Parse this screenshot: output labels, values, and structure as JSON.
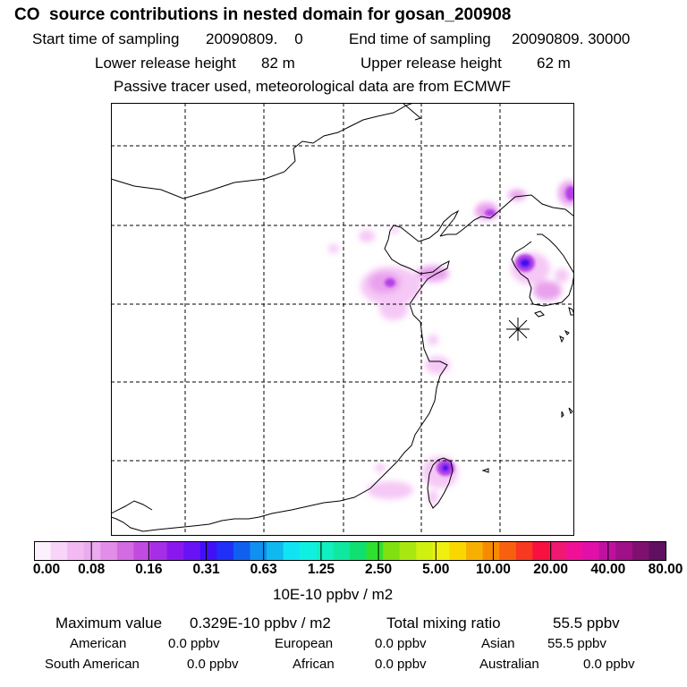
{
  "header": {
    "title": "CO  source contributions in nested domain for gosan_200908",
    "start_label": "Start time of sampling",
    "start_value": "20090809.    0",
    "end_label": "End time of sampling",
    "end_value": "20090809. 30000",
    "lower_label": "Lower release height",
    "lower_value": "82 m",
    "upper_label": "Upper release height",
    "upper_value": "62 m",
    "passive_note": "Passive tracer used, meteorological data are from ECMWF"
  },
  "colors": {
    "scale": [
      "#fdf0fd",
      "#f8d5f8",
      "#f3b9f3",
      "#ecaaef",
      "#e28ee8",
      "#d36be2",
      "#c14ae0",
      "#a52ee6",
      "#8a18ee",
      "#6a12f6",
      "#4010f8",
      "#2030f8",
      "#1060f0",
      "#1090f0",
      "#10b8f0",
      "#10e4f4",
      "#10f0e0",
      "#10f0c0",
      "#10e8a0",
      "#10e070",
      "#30e030",
      "#80e010",
      "#a8e810",
      "#d0f010",
      "#f0f010",
      "#f8d800",
      "#f8b000",
      "#f88a00",
      "#f86010",
      "#f83820",
      "#f81040",
      "#f01870",
      "#f01098",
      "#e010a8",
      "#c010a0",
      "#a01088",
      "#801070",
      "#601060"
    ],
    "plume_light": "#f5c8f5",
    "plume_mid": "#e9a0ee",
    "plume_strong": "#b440e8",
    "plume_peak": "#4010f0",
    "receptor": "#000000"
  },
  "colorbar": {
    "ticks": [
      "0.00",
      "0.08",
      "0.16",
      "0.31",
      "0.63",
      "1.25",
      "2.50",
      "5.00",
      "10.00",
      "20.00",
      "40.00",
      "80.00"
    ],
    "units": "10E-10 ppbv / m2"
  },
  "summary": {
    "maximum_label": "Maximum value",
    "maximum_value": "0.329E-10 ppbv / m2",
    "total_label": "Total mixing ratio",
    "total_value": "55.5 ppbv",
    "regions": [
      {
        "name": "American",
        "value": "0.0 ppbv"
      },
      {
        "name": "European",
        "value": "0.0 ppbv"
      },
      {
        "name": "Asian",
        "value": "55.5 ppbv"
      },
      {
        "name": "South American",
        "value": "0.0 ppbv"
      },
      {
        "name": "African",
        "value": "0.0 ppbv"
      },
      {
        "name": "Australian",
        "value": "0.0 ppbv"
      }
    ]
  }
}
